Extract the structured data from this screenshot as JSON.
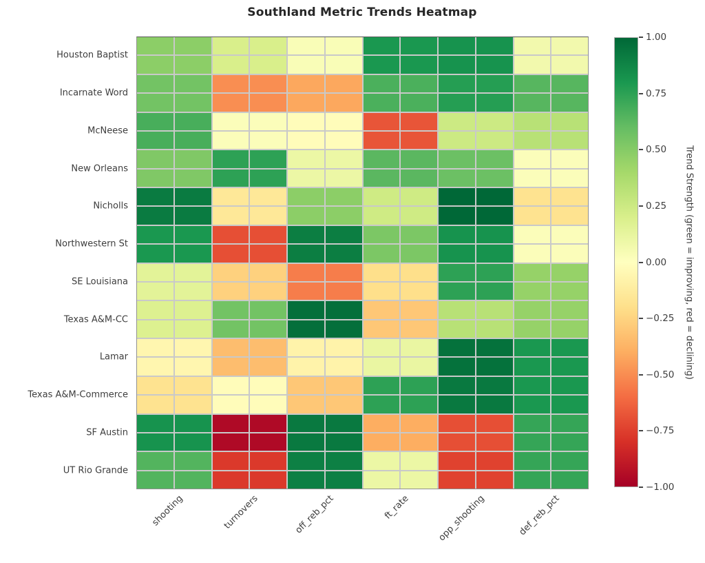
{
  "title": "Southland Metric Trends Heatmap",
  "chart_data": {
    "type": "heatmap",
    "title": "Southland Metric Trends Heatmap",
    "rows": [
      "Houston Baptist",
      "Incarnate Word",
      "McNeese",
      "New Orleans",
      "Nicholls",
      "Northwestern St",
      "SE Louisiana",
      "Texas A&M-CC",
      "Lamar",
      "Texas A&M-Commerce",
      "SF Austin",
      "UT Rio Grande"
    ],
    "columns": [
      "shooting",
      "turnovers",
      "off_reb_pct",
      "ft_rate",
      "opp_shooting",
      "def_reb_pct"
    ],
    "values": [
      [
        0.48,
        0.2,
        0.03,
        0.8,
        0.82,
        0.07
      ],
      [
        0.56,
        -0.5,
        -0.42,
        0.67,
        0.77,
        0.64
      ],
      [
        0.68,
        0.02,
        -0.02,
        -0.68,
        0.25,
        0.33
      ],
      [
        0.52,
        0.75,
        0.1,
        0.63,
        0.58,
        0.02
      ],
      [
        0.92,
        -0.15,
        0.48,
        0.24,
        1.0,
        -0.18
      ],
      [
        0.8,
        -0.7,
        0.91,
        0.53,
        0.82,
        0.02
      ],
      [
        0.15,
        -0.26,
        -0.55,
        -0.2,
        0.75,
        0.45
      ],
      [
        0.18,
        0.56,
        0.97,
        -0.3,
        0.33,
        0.45
      ],
      [
        -0.06,
        -0.34,
        -0.08,
        0.11,
        0.96,
        0.8
      ],
      [
        -0.18,
        -0.02,
        -0.3,
        0.75,
        0.93,
        0.8
      ],
      [
        0.82,
        -0.96,
        0.93,
        -0.4,
        -0.7,
        0.73
      ],
      [
        0.65,
        -0.77,
        0.9,
        0.1,
        -0.74,
        0.73
      ]
    ],
    "vmin": -1,
    "vmax": 1,
    "colormap": "RdYlGn",
    "colormap_stops": [
      "#a50026",
      "#d73027",
      "#f46d43",
      "#fdae61",
      "#fee08b",
      "#ffffbf",
      "#d9ef8b",
      "#a6d96a",
      "#66bd63",
      "#1a9850",
      "#006837"
    ],
    "grid_color": "#c9c9c9",
    "cell_subdivision": 2,
    "colorbar": {
      "label": "Trend Strength (green = improving, red = declining)",
      "ticks": [
        "1.00",
        "0.75",
        "0.50",
        "0.25",
        "0.00",
        "−0.25",
        "−0.50",
        "−0.75",
        "−1.00"
      ],
      "tick_values": [
        1,
        0.75,
        0.5,
        0.25,
        0,
        -0.25,
        -0.5,
        -0.75,
        -1
      ]
    }
  }
}
